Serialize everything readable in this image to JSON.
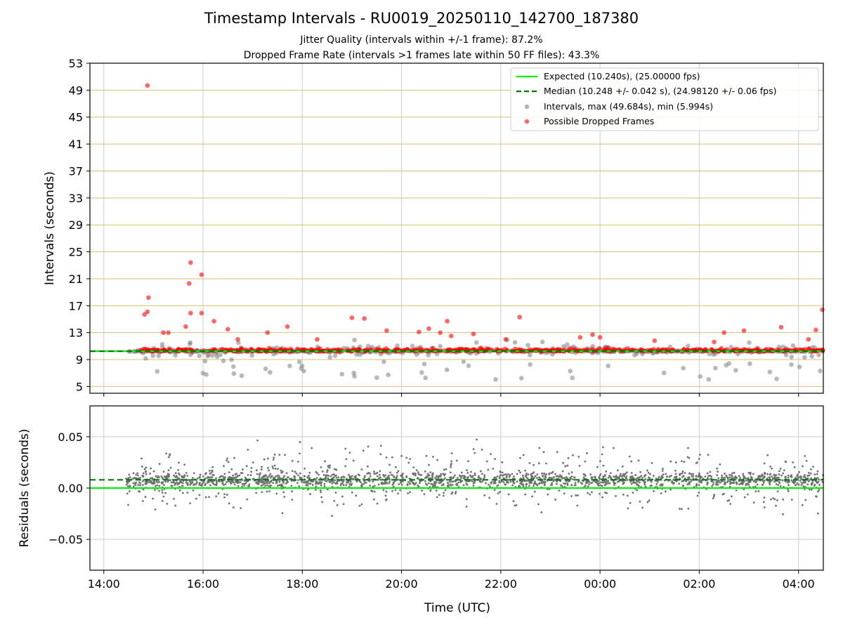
{
  "title": "Timestamp Intervals - RU0019_20250110_142700_187380",
  "subtitle_lines": [
    "Jitter Quality (intervals within +/-1 frame): 87.2%",
    "Dropped Frame Rate (intervals >1 frames late within 50 FF files): 43.3%"
  ],
  "colors": {
    "expected": "#00ee00",
    "median": "#007700",
    "intervals": "#808080",
    "dropped": "#ff0000",
    "hgrid_top": "#d9bf73",
    "grid": "#cccccc"
  },
  "chart_data": [
    {
      "type": "scatter",
      "ylabel": "Intervals (seconds)",
      "ylim": [
        4,
        53
      ],
      "yticks": [
        5,
        9,
        13,
        17,
        21,
        25,
        29,
        33,
        37,
        41,
        45,
        49,
        53
      ],
      "xlim_hours": [
        13.72,
        28.5
      ],
      "xtick_hours": [
        14,
        16,
        18,
        20,
        22,
        24,
        26,
        28
      ],
      "xtick_labels": [
        "14:00",
        "16:00",
        "18:00",
        "20:00",
        "22:00",
        "00:00",
        "02:00",
        "04:00"
      ],
      "expected_interval": 10.24,
      "median_interval": 10.248,
      "legend": {
        "placement": "top-right",
        "entries": [
          "Expected (10.240s), (25.00000 fps)",
          "Median (10.248 +/- 0.042 s), (24.98120 +/- 0.06 fps)",
          "Intervals, max (49.684s), min (5.994s)",
          "Possible Dropped Frames"
        ]
      },
      "series": [
        {
          "name": "Intervals, max (49.684s), min (5.994s)",
          "x_start_hour": 14.45,
          "x_end_hour": 28.5,
          "baseline": 10.24,
          "spread_low": 6.0,
          "spread_high": 12.0
        },
        {
          "name": "Possible Dropped Frames",
          "points": [
            [
              14.88,
              49.7
            ],
            [
              15.75,
              23.4
            ],
            [
              15.72,
              20.3
            ],
            [
              15.97,
              21.6
            ],
            [
              14.9,
              18.2
            ],
            [
              14.88,
              16.1
            ],
            [
              14.82,
              15.7
            ],
            [
              15.75,
              15.9
            ],
            [
              15.97,
              15.9
            ],
            [
              16.22,
              14.7
            ],
            [
              19.0,
              15.2
            ],
            [
              19.25,
              15.1
            ],
            [
              20.92,
              14.7
            ],
            [
              22.38,
              15.3
            ],
            [
              28.48,
              16.4
            ],
            [
              15.65,
              13.9
            ],
            [
              17.7,
              13.9
            ],
            [
              20.35,
              13.1
            ],
            [
              20.55,
              13.6
            ],
            [
              20.78,
              13.0
            ],
            [
              21.0,
              12.5
            ],
            [
              21.45,
              12.8
            ],
            [
              23.6,
              12.3
            ],
            [
              23.85,
              12.7
            ],
            [
              24.0,
              12.3
            ],
            [
              26.5,
              13.0
            ],
            [
              26.9,
              13.3
            ],
            [
              27.65,
              13.8
            ],
            [
              28.35,
              13.4
            ],
            [
              28.2,
              12.0
            ],
            [
              15.2,
              13.0
            ],
            [
              15.3,
              13.0
            ],
            [
              16.5,
              13.5
            ],
            [
              16.7,
              12.0
            ],
            [
              17.3,
              13.0
            ],
            [
              18.3,
              12.0
            ],
            [
              19.7,
              13.3
            ],
            [
              22.1,
              12.0
            ],
            [
              25.1,
              11.8
            ],
            [
              26.3,
              11.6
            ]
          ]
        }
      ]
    },
    {
      "type": "scatter",
      "xlabel": "Time (UTC)",
      "ylabel": "Residuals (seconds)",
      "ylim": [
        -0.08,
        0.08
      ],
      "yticks": [
        0.05,
        0.0,
        -0.05
      ],
      "ytick_labels": [
        "0.05",
        "0.00",
        "−0.05"
      ],
      "expected_residual": 0.0,
      "median_residual": 0.008
    }
  ]
}
